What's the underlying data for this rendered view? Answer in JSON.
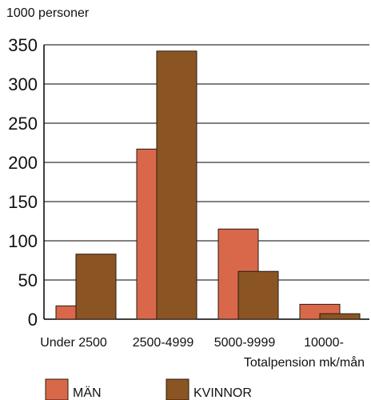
{
  "chart_data": {
    "type": "bar",
    "ylabel": "1000 personer",
    "xlabel": "Totalpension mk/mån",
    "categories": [
      "Under 2500",
      "2500-4999",
      "5000-9999",
      "10000-"
    ],
    "series": [
      {
        "name": "MÄN",
        "values": [
          17,
          217,
          115,
          19
        ]
      },
      {
        "name": "KVINNOR",
        "values": [
          83,
          342,
          61,
          7
        ]
      }
    ],
    "ylim": [
      0,
      350
    ],
    "yticks": [
      0,
      50,
      100,
      150,
      200,
      250,
      300,
      350
    ],
    "grid": true,
    "legend_position": "bottom"
  },
  "colors": {
    "MÄN": "#d9684a",
    "KVINNOR": "#8b5523",
    "grid": "#000000",
    "bar_outline": "#2a1a10"
  }
}
